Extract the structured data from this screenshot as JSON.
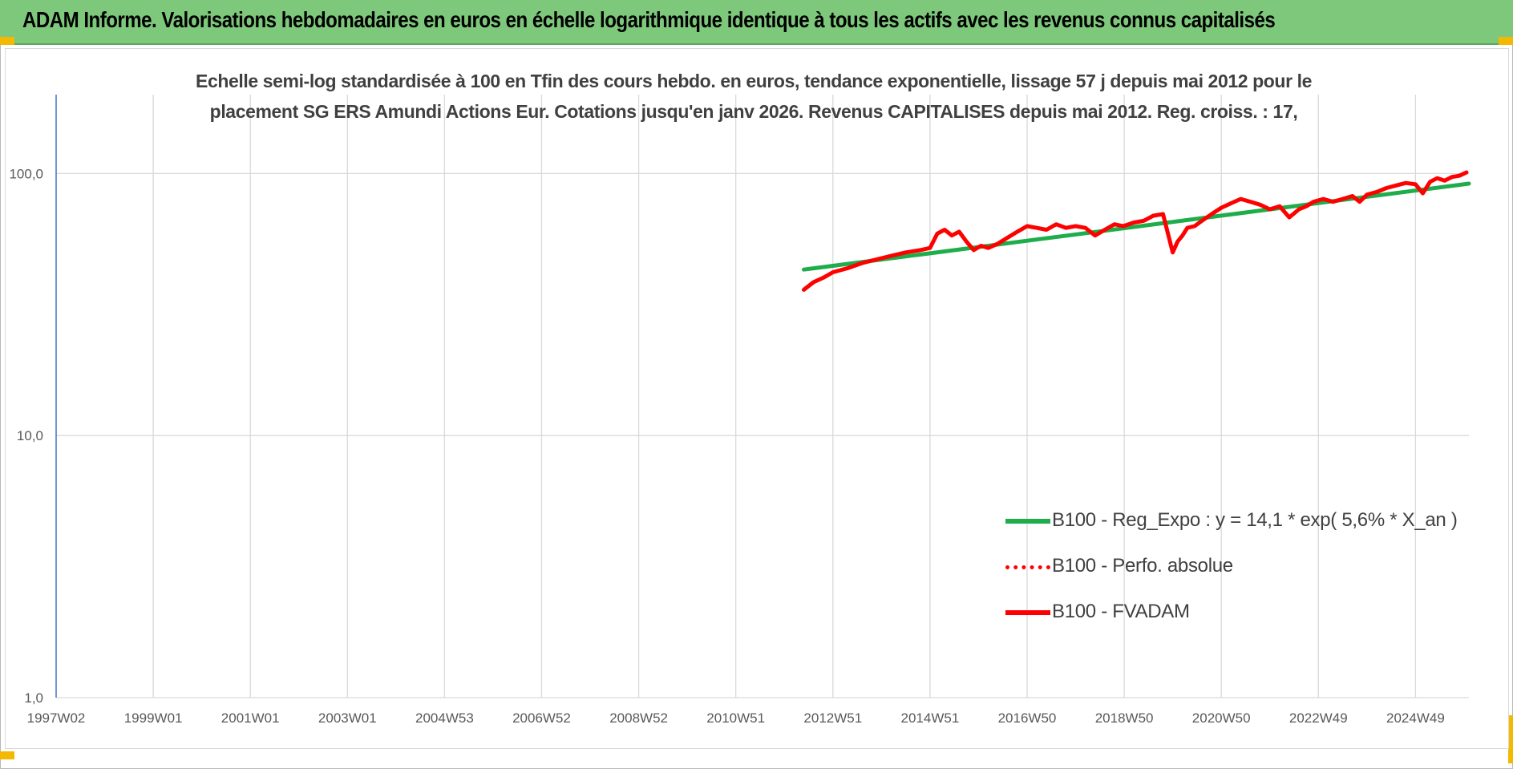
{
  "banner": {
    "title": "ADAM Informe. Valorisations hebdomadaires en euros en échelle logarithmique identique à tous les actifs avec les revenus connus capitalisés",
    "color": "#7dc87b"
  },
  "chart_data": {
    "type": "line",
    "title_lines": [
      "Echelle semi-log standardisée à 100 en Tfin des cours hebdo. en euros, tendance exponentielle, lissage 57 j depuis mai 2012 pour le",
      "placement SG ERS Amundi Actions Eur. Cotations jusqu'en janv 2026. Revenus CAPITALISES depuis mai 2012. Reg. croiss. : 17,"
    ],
    "y_scale": "log",
    "ylim": [
      1,
      200
    ],
    "y_ticks": [
      "1,0",
      "10,0",
      "100,0"
    ],
    "y_tick_values": [
      1,
      10,
      100
    ],
    "x_range": [
      1997.0,
      2026.1
    ],
    "x_ticks": [
      {
        "label": "1997W02",
        "year": 1997.0
      },
      {
        "label": "1999W01",
        "year": 1999.0
      },
      {
        "label": "2001W01",
        "year": 2001.0
      },
      {
        "label": "2003W01",
        "year": 2003.0
      },
      {
        "label": "2004W53",
        "year": 2005.0
      },
      {
        "label": "2006W52",
        "year": 2007.0
      },
      {
        "label": "2008W52",
        "year": 2009.0
      },
      {
        "label": "2010W51",
        "year": 2011.0
      },
      {
        "label": "2012W51",
        "year": 2013.0
      },
      {
        "label": "2014W51",
        "year": 2015.0
      },
      {
        "label": "2016W50",
        "year": 2017.0
      },
      {
        "label": "2018W50",
        "year": 2019.0
      },
      {
        "label": "2020W50",
        "year": 2021.0
      },
      {
        "label": "2022W49",
        "year": 2023.0
      },
      {
        "label": "2024W49",
        "year": 2025.0
      }
    ],
    "grid": true,
    "legend_position": "right",
    "series": [
      {
        "name": "B100 - Reg_Expo : y = 14,1 * exp( 5,6% *  X_an )",
        "color": "#1fad4b",
        "style": "solid",
        "x": [
          2012.4,
          2026.1
        ],
        "y": [
          43.0,
          91.5
        ]
      },
      {
        "name": "B100 - Perfo. absolue",
        "color": "#ff0000",
        "style": "dotted",
        "x": [],
        "y": []
      },
      {
        "name": "B100 - FVADAM",
        "color": "#ff0000",
        "style": "solid",
        "x": [
          2012.4,
          2012.6,
          2012.8,
          2013.0,
          2013.3,
          2013.6,
          2013.9,
          2014.2,
          2014.5,
          2014.8,
          2015.0,
          2015.15,
          2015.3,
          2015.45,
          2015.6,
          2015.75,
          2015.9,
          2016.05,
          2016.2,
          2016.4,
          2016.6,
          2016.8,
          2017.0,
          2017.2,
          2017.4,
          2017.6,
          2017.8,
          2018.0,
          2018.2,
          2018.4,
          2018.6,
          2018.8,
          2018.98,
          2019.2,
          2019.4,
          2019.6,
          2019.8,
          2020.0,
          2020.1,
          2020.2,
          2020.3,
          2020.45,
          2020.6,
          2020.8,
          2021.0,
          2021.2,
          2021.4,
          2021.6,
          2021.8,
          2022.0,
          2022.2,
          2022.4,
          2022.6,
          2022.75,
          2022.9,
          2023.1,
          2023.3,
          2023.5,
          2023.7,
          2023.85,
          2024.0,
          2024.2,
          2024.4,
          2024.6,
          2024.8,
          2025.0,
          2025.15,
          2025.3,
          2025.45,
          2025.6,
          2025.75,
          2025.9,
          2026.05
        ],
        "y": [
          36.0,
          38.5,
          40.0,
          42.0,
          43.5,
          45.5,
          47.0,
          48.5,
          50.0,
          51.0,
          52.0,
          59.0,
          61.0,
          58.0,
          60.0,
          55.0,
          51.0,
          53.0,
          52.0,
          54.0,
          57.0,
          60.0,
          63.0,
          62.0,
          61.0,
          64.0,
          62.0,
          63.0,
          62.0,
          58.0,
          61.0,
          64.0,
          63.0,
          65.0,
          66.0,
          69.0,
          70.0,
          50.0,
          55.0,
          58.0,
          62.0,
          63.0,
          66.0,
          70.0,
          74.0,
          77.0,
          80.0,
          78.0,
          76.0,
          73.0,
          75.0,
          68.0,
          73.0,
          75.0,
          78.0,
          80.0,
          78.0,
          80.0,
          82.0,
          78.0,
          83.0,
          85.0,
          88.0,
          90.0,
          92.0,
          91.0,
          84.0,
          93.0,
          96.0,
          94.0,
          97.0,
          98.0,
          101.0
        ]
      }
    ]
  }
}
